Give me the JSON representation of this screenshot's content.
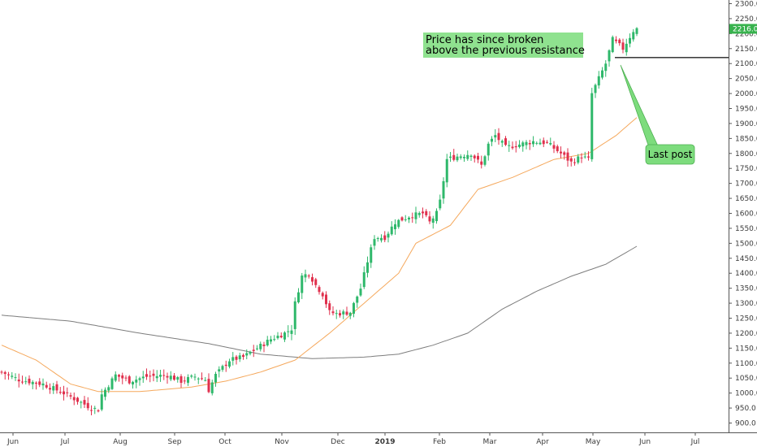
{
  "chart_data": {
    "type": "candlestick",
    "y_ticks": [
      900,
      950,
      1000,
      1050,
      1100,
      1150,
      1200,
      1250,
      1300,
      1350,
      1400,
      1450,
      1500,
      1550,
      1600,
      1650,
      1700,
      1750,
      1800,
      1850,
      1900,
      1950,
      2000,
      2050,
      2100,
      2150,
      2200,
      2250,
      2300
    ],
    "ylim": [
      870,
      2320
    ],
    "x_ticks": [
      {
        "label": "Jun",
        "bold": false
      },
      {
        "label": "Jul",
        "bold": false
      },
      {
        "label": "Aug",
        "bold": false
      },
      {
        "label": "Sep",
        "bold": false
      },
      {
        "label": "Oct",
        "bold": false
      },
      {
        "label": "Nov",
        "bold": false
      },
      {
        "label": "Dec",
        "bold": false
      },
      {
        "label": "2019",
        "bold": true
      },
      {
        "label": "Feb",
        "bold": false
      },
      {
        "label": "Mar",
        "bold": false
      },
      {
        "label": "Apr",
        "bold": false
      },
      {
        "label": "May",
        "bold": false
      },
      {
        "label": "Jun",
        "bold": false
      },
      {
        "label": "Jul",
        "bold": false
      }
    ],
    "price_keypoints": [
      [
        0,
        1070
      ],
      [
        5,
        1045
      ],
      [
        12,
        1030
      ],
      [
        18,
        1000
      ],
      [
        22,
        975
      ],
      [
        26,
        950
      ],
      [
        28,
        945
      ],
      [
        29,
        995
      ],
      [
        33,
        1060
      ],
      [
        37,
        1040
      ],
      [
        42,
        1055
      ],
      [
        48,
        1060
      ],
      [
        52,
        1040
      ],
      [
        56,
        1055
      ],
      [
        59,
        1045
      ],
      [
        60,
        1010
      ],
      [
        62,
        1060
      ],
      [
        66,
        1110
      ],
      [
        70,
        1120
      ],
      [
        74,
        1150
      ],
      [
        78,
        1180
      ],
      [
        82,
        1200
      ],
      [
        84,
        1215
      ],
      [
        85,
        1300
      ],
      [
        87,
        1390
      ],
      [
        89,
        1400
      ],
      [
        91,
        1360
      ],
      [
        93,
        1330
      ],
      [
        95,
        1270
      ],
      [
        97,
        1265
      ],
      [
        101,
        1270
      ],
      [
        104,
        1350
      ],
      [
        106,
        1440
      ],
      [
        108,
        1520
      ],
      [
        111,
        1520
      ],
      [
        114,
        1570
      ],
      [
        118,
        1590
      ],
      [
        122,
        1600
      ],
      [
        124,
        1570
      ],
      [
        126,
        1600
      ],
      [
        127,
        1640
      ],
      [
        129,
        1780
      ],
      [
        132,
        1790
      ],
      [
        136,
        1800
      ],
      [
        139,
        1760
      ],
      [
        141,
        1830
      ],
      [
        143,
        1860
      ],
      [
        146,
        1820
      ],
      [
        150,
        1830
      ],
      [
        154,
        1840
      ],
      [
        158,
        1835
      ],
      [
        162,
        1800
      ],
      [
        165,
        1770
      ],
      [
        168,
        1790
      ],
      [
        170,
        1780
      ],
      [
        171,
        2000
      ],
      [
        173,
        2050
      ],
      [
        175,
        2100
      ],
      [
        177,
        2180
      ],
      [
        180,
        2150
      ],
      [
        183,
        2210
      ],
      [
        184,
        2216
      ]
    ],
    "ma_short": [
      [
        0,
        1160
      ],
      [
        10,
        1110
      ],
      [
        20,
        1030
      ],
      [
        28,
        1005
      ],
      [
        40,
        1005
      ],
      [
        55,
        1020
      ],
      [
        65,
        1040
      ],
      [
        75,
        1070
      ],
      [
        85,
        1110
      ],
      [
        95,
        1200
      ],
      [
        105,
        1300
      ],
      [
        115,
        1400
      ],
      [
        120,
        1500
      ],
      [
        130,
        1560
      ],
      [
        138,
        1680
      ],
      [
        148,
        1720
      ],
      [
        160,
        1780
      ],
      [
        170,
        1800
      ],
      [
        178,
        1860
      ],
      [
        184,
        1920
      ]
    ],
    "ma_long": [
      [
        0,
        1260
      ],
      [
        20,
        1240
      ],
      [
        40,
        1200
      ],
      [
        60,
        1165
      ],
      [
        75,
        1130
      ],
      [
        90,
        1115
      ],
      [
        105,
        1120
      ],
      [
        115,
        1130
      ],
      [
        125,
        1160
      ],
      [
        135,
        1200
      ],
      [
        145,
        1280
      ],
      [
        155,
        1340
      ],
      [
        165,
        1390
      ],
      [
        175,
        1430
      ],
      [
        184,
        1490
      ]
    ],
    "resistance_level": 2120,
    "last_price": 2216.0,
    "last_price_label": "2216.0",
    "annotations": {
      "main_text_line1": "Price has since broken",
      "main_text_line2": "above the previous resistance",
      "callout_text": "Last post"
    },
    "colors": {
      "up": "#26a69a",
      "down": "#ef5350",
      "up_fill": "#2fb86b",
      "down_fill": "#e0304d",
      "ma_short": "#f5a85c",
      "ma_long": "#7d7d7d",
      "annotation_bg": "#8fe28f",
      "callout_bg": "#7ddc7d",
      "price_label_bg": "#37b24d"
    }
  }
}
